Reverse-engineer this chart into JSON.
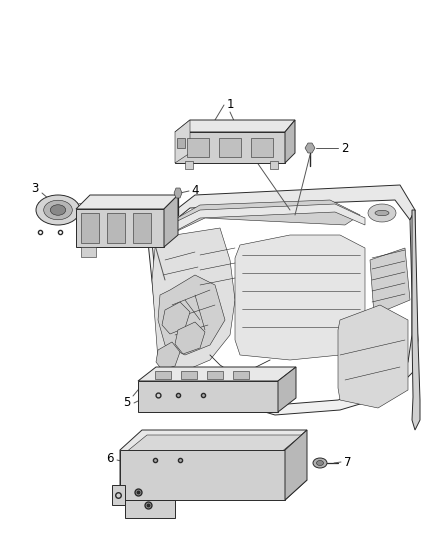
{
  "background_color": "#ffffff",
  "fig_width": 4.38,
  "fig_height": 5.33,
  "dpi": 100,
  "line_color": "#2a2a2a",
  "light_fill": "#e8e8e8",
  "mid_fill": "#d0d0d0",
  "dark_fill": "#b8b8b8",
  "label_fontsize": 8.5,
  "label_color": "#000000",
  "label_line_color": "#555555",
  "lw": 0.7,
  "lw_thin": 0.4,
  "lw_thick": 0.9
}
